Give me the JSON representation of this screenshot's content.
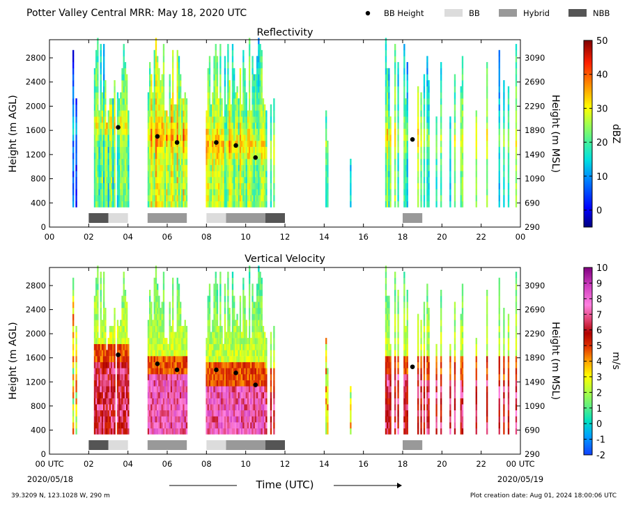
{
  "header": {
    "title": "Potter Valley Central MRR:  May 18, 2020 UTC",
    "legend": [
      {
        "label": "BB Height",
        "marker": "dot",
        "color": "#000000"
      },
      {
        "label": "BB",
        "marker": "box",
        "color": "#dcdcdc"
      },
      {
        "label": "Hybrid",
        "marker": "box",
        "color": "#999999"
      },
      {
        "label": "NBB",
        "marker": "box",
        "color": "#555555"
      }
    ]
  },
  "footer": {
    "location": "39.3209 N, 123.1028 W, 290 m",
    "created": "Plot creation date: Aug 01, 2024 18:00:06 UTC",
    "xlabel": "Time (UTC)",
    "start_date": "2020/05/18",
    "end_date": "2020/05/19"
  },
  "chart_data": [
    {
      "type": "heatmap",
      "title": "Reflectivity",
      "ylabel": "Height (m AGL)",
      "y2label": "Height (m MSL)",
      "xlim": [
        0,
        24
      ],
      "ylim": [
        0,
        3100
      ],
      "xticks": [
        "00",
        "02",
        "04",
        "06",
        "08",
        "10",
        "12",
        "14",
        "16",
        "18",
        "20",
        "22",
        "00"
      ],
      "yticks": [
        0,
        400,
        800,
        1200,
        1600,
        2000,
        2400,
        2800
      ],
      "y2ticks": [
        290,
        690,
        1090,
        1490,
        1890,
        2290,
        2690,
        3090
      ],
      "colorbar": {
        "label": "dBZ",
        "min": -5,
        "max": 50,
        "ticks": [
          0,
          10,
          20,
          30,
          40,
          50
        ]
      },
      "bb_height": [
        {
          "x": 3.5,
          "y": 1650
        },
        {
          "x": 5.5,
          "y": 1500
        },
        {
          "x": 6.5,
          "y": 1400
        },
        {
          "x": 8.5,
          "y": 1400
        },
        {
          "x": 9.5,
          "y": 1350
        },
        {
          "x": 10.5,
          "y": 1150
        },
        {
          "x": 18.5,
          "y": 1450
        }
      ],
      "bb_types": [
        {
          "start": 2,
          "end": 3,
          "type": "NBB"
        },
        {
          "start": 3,
          "end": 4,
          "type": "BB"
        },
        {
          "start": 5,
          "end": 7,
          "type": "Hybrid"
        },
        {
          "start": 8,
          "end": 9,
          "type": "BB"
        },
        {
          "start": 9,
          "end": 11,
          "type": "Hybrid"
        },
        {
          "start": 11,
          "end": 12,
          "type": "NBB"
        },
        {
          "start": 18,
          "end": 19,
          "type": "Hybrid"
        }
      ]
    },
    {
      "type": "heatmap",
      "title": "Vertical Velocity",
      "ylabel": "Height (m AGL)",
      "y2label": "Height (m MSL)",
      "xlim": [
        0,
        24
      ],
      "ylim": [
        0,
        3100
      ],
      "xticks": [
        "00 UTC",
        "02",
        "04",
        "06",
        "08",
        "10",
        "12",
        "14",
        "16",
        "18",
        "20",
        "22",
        "00 UTC"
      ],
      "yticks": [
        0,
        400,
        800,
        1200,
        1600,
        2000,
        2400,
        2800
      ],
      "y2ticks": [
        290,
        690,
        1090,
        1490,
        1890,
        2290,
        2690,
        3090
      ],
      "colorbar": {
        "label": "m/s",
        "min": -2,
        "max": 10,
        "ticks": [
          -2,
          -1,
          0,
          1,
          2,
          3,
          4,
          5,
          6,
          7,
          8,
          9,
          10
        ]
      },
      "bb_height": [
        {
          "x": 3.5,
          "y": 1650
        },
        {
          "x": 5.5,
          "y": 1500
        },
        {
          "x": 6.5,
          "y": 1400
        },
        {
          "x": 8.5,
          "y": 1400
        },
        {
          "x": 9.5,
          "y": 1350
        },
        {
          "x": 10.5,
          "y": 1150
        },
        {
          "x": 18.5,
          "y": 1450
        }
      ],
      "bb_types": [
        {
          "start": 2,
          "end": 3,
          "type": "NBB"
        },
        {
          "start": 3,
          "end": 4,
          "type": "BB"
        },
        {
          "start": 5,
          "end": 7,
          "type": "Hybrid"
        },
        {
          "start": 8,
          "end": 9,
          "type": "BB"
        },
        {
          "start": 9,
          "end": 11,
          "type": "Hybrid"
        },
        {
          "start": 11,
          "end": 12,
          "type": "NBB"
        },
        {
          "start": 18,
          "end": 19,
          "type": "Hybrid"
        }
      ]
    }
  ]
}
